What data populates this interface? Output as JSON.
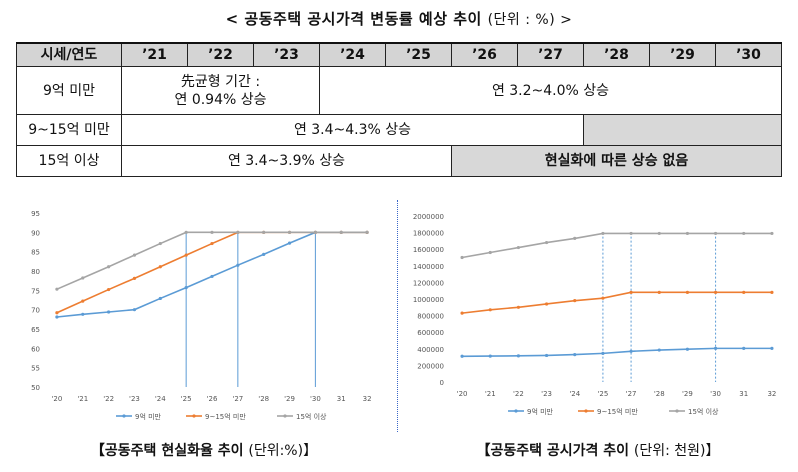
{
  "header": {
    "title": "< 공동주택 공시가격 변동률 예상 추이",
    "unit": "(단위 : %) >"
  },
  "table": {
    "columns": [
      "시세/연도",
      "’21",
      "’22",
      "’23",
      "’24",
      "’25",
      "’26",
      "’27",
      "’28",
      "’29",
      "’30"
    ],
    "rows": [
      {
        "label": "9억 미만",
        "cells": [
          {
            "text": "先균형 기간 :\n연 0.94% 상승"
          },
          {
            "text": "연 3.2~4.0% 상승"
          }
        ]
      },
      {
        "label": "9~15억 미만",
        "cells": [
          {
            "text": "연 3.4~4.3% 상승"
          },
          {
            "text": ""
          }
        ]
      },
      {
        "label": "15억 이상",
        "cells": [
          {
            "text": "연 3.4~3.9% 상승"
          },
          {
            "text": "현실화에 따른 상승 없음"
          }
        ]
      }
    ]
  },
  "colors": {
    "series1": "#5b9bd5",
    "series2": "#ed7d31",
    "series3": "#a5a5a5",
    "guide": "#5b9bd5"
  },
  "chart_data": [
    {
      "type": "line",
      "x": [
        "'20",
        "'21",
        "'22",
        "'23",
        "'24",
        "'25",
        "'26",
        "'27",
        "'28",
        "'29",
        "'30",
        "31",
        "32"
      ],
      "ylim": [
        50,
        95
      ],
      "yticks": [
        50,
        55,
        60,
        65,
        70,
        75,
        80,
        85,
        90,
        95
      ],
      "grid": false,
      "legend": "bottom",
      "caption": "【공동주택 현실화율 추이",
      "caption_unit": "(단위:%)】",
      "series": [
        {
          "name": "9억 미만",
          "values": [
            68.1,
            68.8,
            69.4,
            70.0,
            72.9,
            75.7,
            78.6,
            81.5,
            84.3,
            87.2,
            90,
            90,
            90
          ]
        },
        {
          "name": "9~15억 미만",
          "values": [
            69.2,
            72.2,
            75.2,
            78.1,
            81.1,
            84.1,
            87.1,
            90,
            90,
            90,
            90,
            90,
            90
          ]
        },
        {
          "name": "15억 이상",
          "values": [
            75.3,
            78.2,
            81.1,
            84.1,
            87.1,
            90,
            90,
            90,
            90,
            90,
            90,
            90,
            90
          ]
        }
      ],
      "guides_x": [
        "'25",
        "'27",
        "'30"
      ]
    },
    {
      "type": "line",
      "x": [
        "'20",
        "'21",
        "'22",
        "'23",
        "'24",
        "'25",
        "'27",
        "'28",
        "'29",
        "'30",
        "31",
        "32"
      ],
      "ylim": [
        0,
        2000000
      ],
      "yticks": [
        0,
        200000,
        400000,
        600000,
        800000,
        1000000,
        1200000,
        1400000,
        1600000,
        1800000,
        2000000
      ],
      "grid": false,
      "legend": "bottom",
      "caption": "【공동주택 공시가격 추이",
      "caption_unit": "(단위: 천원)】",
      "series": [
        {
          "name": "9억 미만",
          "values": [
            310000,
            312000,
            315000,
            320000,
            330000,
            345000,
            370000,
            385000,
            395000,
            405000,
            405000,
            405000
          ]
        },
        {
          "name": "9~15억 미만",
          "values": [
            830000,
            870000,
            900000,
            940000,
            980000,
            1010000,
            1080000,
            1080000,
            1080000,
            1080000,
            1080000,
            1080000
          ]
        },
        {
          "name": "15억 이상",
          "values": [
            1500000,
            1560000,
            1620000,
            1680000,
            1730000,
            1790000,
            1790000,
            1790000,
            1790000,
            1790000,
            1790000,
            1790000
          ]
        }
      ],
      "guides_x": [
        "'25",
        "'27",
        "'30"
      ]
    }
  ]
}
